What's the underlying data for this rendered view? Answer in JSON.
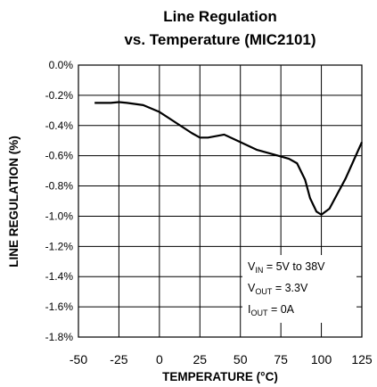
{
  "chart_data": {
    "type": "line",
    "title": [
      "Line Regulation",
      "vs. Temperature (MIC2101)"
    ],
    "xlabel": "TEMPERATURE (°C)",
    "ylabel": "LINE REGULATION (%)",
    "xlim": [
      -50,
      125
    ],
    "xticks": [
      -50,
      -25,
      0,
      25,
      50,
      75,
      100,
      125
    ],
    "ylim": [
      -1.8,
      0
    ],
    "yticks": [
      {
        "value": 0,
        "label": "0.0%"
      },
      {
        "value": -0.2,
        "label": "-0.2%"
      },
      {
        "value": -0.4,
        "label": "-0.4%"
      },
      {
        "value": -0.6,
        "label": "-0.6%"
      },
      {
        "value": -0.8,
        "label": "-0.8%"
      },
      {
        "value": -1.0,
        "label": "-1.0%"
      },
      {
        "value": -1.2,
        "label": "-1.2%"
      },
      {
        "value": -1.4,
        "label": "-1.4%"
      },
      {
        "value": -1.6,
        "label": "-1.6%"
      },
      {
        "value": -1.8,
        "label": "-1.8%"
      }
    ],
    "grid": true,
    "series": [
      {
        "color": "#000000",
        "x": [
          -40,
          -30,
          -25,
          -20,
          -10,
          0,
          10,
          20,
          25,
          30,
          40,
          50,
          60,
          70,
          80,
          85,
          90,
          93,
          97,
          100,
          105,
          110,
          115,
          120,
          125
        ],
        "values": [
          -0.25,
          -0.25,
          -0.245,
          -0.25,
          -0.265,
          -0.31,
          -0.38,
          -0.45,
          -0.48,
          -0.48,
          -0.46,
          -0.51,
          -0.56,
          -0.59,
          -0.62,
          -0.65,
          -0.76,
          -0.88,
          -0.97,
          -0.99,
          -0.95,
          -0.85,
          -0.75,
          -0.63,
          -0.51
        ]
      }
    ],
    "annotations": [
      {
        "main": "V",
        "sub": "IN",
        "rest": " = 5V to 38V"
      },
      {
        "main": "V",
        "sub": "OUT",
        "rest": " = 3.3V"
      },
      {
        "main": "I",
        "sub": "OUT",
        "rest": " = 0A"
      }
    ]
  }
}
